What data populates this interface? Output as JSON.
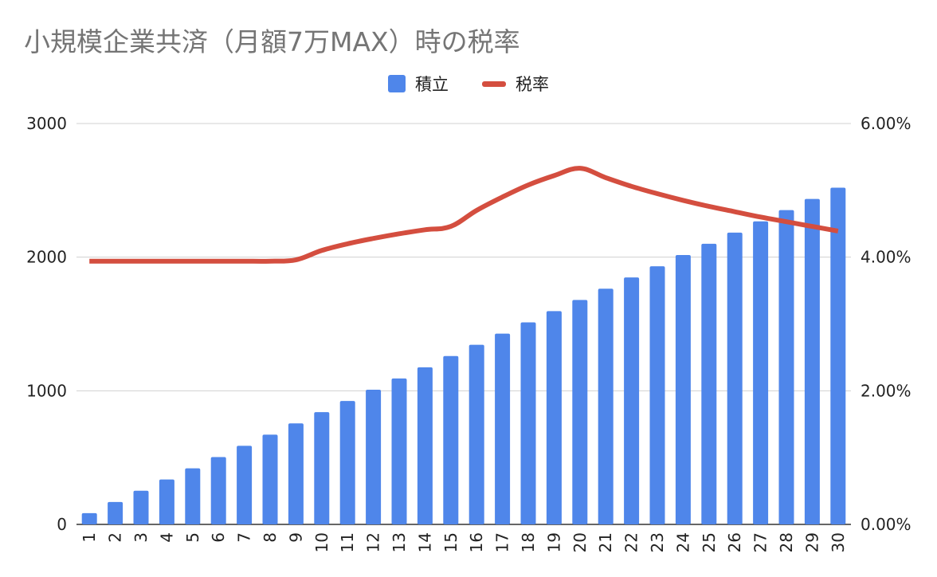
{
  "chart_data": {
    "type": "bar+line",
    "title": "小規模企業共済（月額7万MAX）時の税率",
    "categories": [
      "1",
      "2",
      "3",
      "4",
      "5",
      "6",
      "7",
      "8",
      "9",
      "10",
      "11",
      "12",
      "13",
      "14",
      "15",
      "16",
      "17",
      "18",
      "19",
      "20",
      "21",
      "22",
      "23",
      "24",
      "25",
      "26",
      "27",
      "28",
      "29",
      "30"
    ],
    "series": [
      {
        "name": "積立",
        "type": "bar",
        "axis": "left",
        "color": "#4f86ea",
        "values": [
          84,
          168,
          252,
          336,
          420,
          504,
          588,
          672,
          756,
          840,
          924,
          1008,
          1092,
          1176,
          1260,
          1344,
          1428,
          1512,
          1596,
          1680,
          1764,
          1848,
          1932,
          2016,
          2100,
          2184,
          2268,
          2352,
          2436,
          2520
        ]
      },
      {
        "name": "税率",
        "type": "line",
        "axis": "right",
        "color": "#d44e3f",
        "values": [
          3.94,
          3.94,
          3.94,
          3.94,
          3.94,
          3.94,
          3.94,
          3.94,
          3.96,
          4.1,
          4.2,
          4.28,
          4.35,
          4.41,
          4.46,
          4.7,
          4.9,
          5.08,
          5.22,
          5.33,
          5.19,
          5.06,
          4.95,
          4.85,
          4.76,
          4.68,
          4.6,
          4.53,
          4.46,
          4.39
        ]
      }
    ],
    "y_left": {
      "min": 0,
      "max": 3000,
      "ticks": [
        "0",
        "1000",
        "2000",
        "3000"
      ]
    },
    "y_right": {
      "min": 0,
      "max": 6,
      "ticks": [
        "0.00%",
        "2.00%",
        "4.00%",
        "6.00%"
      ]
    },
    "grid": true,
    "legend_position": "top-center"
  }
}
